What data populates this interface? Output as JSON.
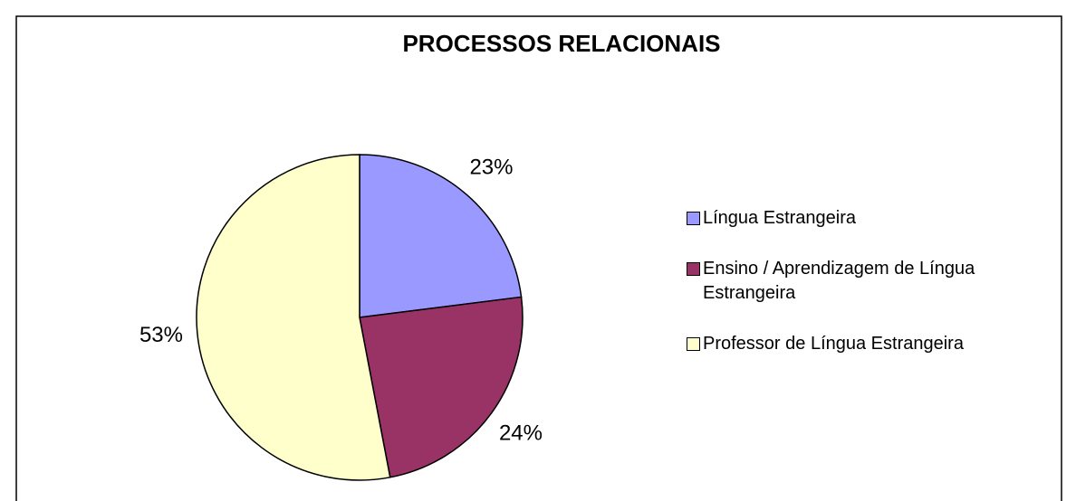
{
  "chart_data": {
    "type": "pie",
    "title": "PROCESSOS RELACIONAIS",
    "categories": [
      "Língua Estrangeira",
      "Ensino / Aprendizagem de Língua Estrangeira",
      "Professor de Língua Estrangeira"
    ],
    "values": [
      23,
      24,
      53
    ],
    "value_labels": [
      "23%",
      "24%",
      "53%"
    ],
    "colors": [
      "#9999ff",
      "#993366",
      "#ffffcc"
    ],
    "legend": "right"
  }
}
